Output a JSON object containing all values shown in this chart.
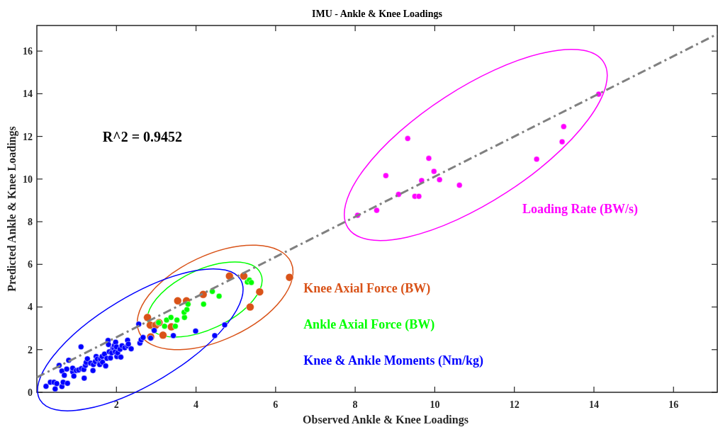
{
  "chart_data": {
    "type": "scatter",
    "title": "IMU - Ankle & Knee Loadings",
    "xlabel": "Observed Ankle & Knee Loadings",
    "ylabel": "Predicted Ankle & Knee Loadings",
    "xlim": [
      0,
      17.1
    ],
    "ylim": [
      0,
      17.2
    ],
    "xticks": [
      2,
      4,
      6,
      8,
      10,
      12,
      14,
      16
    ],
    "yticks": [
      0,
      2,
      4,
      6,
      8,
      10,
      12,
      14,
      16
    ],
    "grid": false,
    "annotations": [
      "R^2 = 0.9452"
    ],
    "series": [
      {
        "name": "Loading Rate (BW/s)",
        "color": "#ff00ff",
        "marker": "circle",
        "x": [
          8.06,
          8.54,
          8.77,
          9.09,
          9.32,
          9.5,
          9.6,
          9.67,
          9.85,
          9.98,
          10.12,
          10.62,
          12.56,
          13.2,
          13.24,
          14.12
        ],
        "values": [
          8.3,
          8.53,
          10.16,
          9.28,
          11.9,
          9.19,
          9.19,
          9.93,
          10.97,
          10.36,
          9.97,
          9.71,
          10.93,
          11.75,
          12.46,
          13.98
        ]
      },
      {
        "name": "Knee Axial Force (BW)",
        "color": "#d95319",
        "marker": "circle",
        "x": [
          2.78,
          2.85,
          2.99,
          2.86,
          3.07,
          3.17,
          3.38,
          3.54,
          3.76,
          4.18,
          4.84,
          5.2,
          5.6,
          5.36,
          6.35
        ],
        "values": [
          3.51,
          3.15,
          3.15,
          2.6,
          3.27,
          2.68,
          3.07,
          4.29,
          4.29,
          4.59,
          5.45,
          5.45,
          4.71,
          4.0,
          5.39
        ]
      },
      {
        "name": "Ankle Axial Force (BW)",
        "color": "#00ff00",
        "marker": "circle",
        "x": [
          3.06,
          3.21,
          3.26,
          3.37,
          3.48,
          3.52,
          3.71,
          3.7,
          3.77,
          3.8,
          4.19,
          4.41,
          4.58,
          5.29,
          5.34,
          5.39
        ],
        "values": [
          3.27,
          3.1,
          3.39,
          3.51,
          3.1,
          3.39,
          3.51,
          3.75,
          3.88,
          4.13,
          4.13,
          4.73,
          4.51,
          5.17,
          5.26,
          5.15
        ]
      },
      {
        "name": "Knee & Ankle Moments (Nm/kg)",
        "color": "#0000ff",
        "marker": "circle",
        "x": [
          0.23,
          0.34,
          0.46,
          0.43,
          0.5,
          0.63,
          0.66,
          0.77,
          0.56,
          0.63,
          0.69,
          0.8,
          0.75,
          0.9,
          0.9,
          0.93,
          0.99,
          1.05,
          1.11,
          1.12,
          1.18,
          1.19,
          1.22,
          1.24,
          1.27,
          1.35,
          1.41,
          1.42,
          1.47,
          1.49,
          1.52,
          1.57,
          1.58,
          1.6,
          1.64,
          1.65,
          1.7,
          1.73,
          1.76,
          1.79,
          1.8,
          1.82,
          1.85,
          1.88,
          1.91,
          1.94,
          1.95,
          1.97,
          1.98,
          2.0,
          2.01,
          2.03,
          2.09,
          2.11,
          2.14,
          2.21,
          2.28,
          2.28,
          2.3,
          2.37,
          2.56,
          2.59,
          2.62,
          2.67,
          2.86,
          2.95,
          3.43,
          3.99,
          4.47,
          4.72
        ],
        "values": [
          0.28,
          0.47,
          0.16,
          0.47,
          0.41,
          0.27,
          0.47,
          0.42,
          1.26,
          1.0,
          0.8,
          1.5,
          1.09,
          0.96,
          1.13,
          0.76,
          1.02,
          1.05,
          2.13,
          1.11,
          1.07,
          0.66,
          1.26,
          1.4,
          1.57,
          1.37,
          1.02,
          1.3,
          1.44,
          1.68,
          1.56,
          1.35,
          1.3,
          1.56,
          1.68,
          1.41,
          1.79,
          1.24,
          1.59,
          2.43,
          2.24,
          1.9,
          1.61,
          1.85,
          2.07,
          2.07,
          2.2,
          1.9,
          2.35,
          2.13,
          1.68,
          1.85,
          2.02,
          1.65,
          2.18,
          2.09,
          2.18,
          2.44,
          2.26,
          2.04,
          3.2,
          2.31,
          2.46,
          2.57,
          2.54,
          2.9,
          2.66,
          2.87,
          2.66,
          3.16
        ]
      },
      {
        "type": "line",
        "color": "#808080",
        "line_style": "dashed",
        "marker": "none",
        "x": [
          0,
          17.1
        ],
        "values": [
          0.7,
          16.8
        ]
      }
    ]
  }
}
